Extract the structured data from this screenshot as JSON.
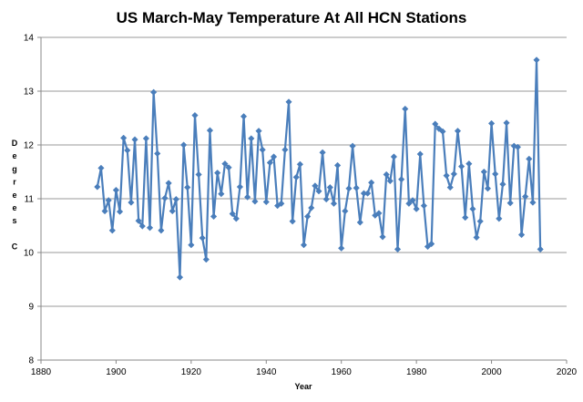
{
  "chart_data": {
    "type": "line",
    "title": "US March-May Temperature At All HCN Stations",
    "xlabel": "Year",
    "ylabel": "Degrees C",
    "xlim": [
      1880,
      2020
    ],
    "ylim": [
      8,
      14
    ],
    "xticks": [
      1880,
      1900,
      1920,
      1940,
      1960,
      1980,
      2000,
      2020
    ],
    "yticks": [
      8,
      9,
      10,
      11,
      12,
      13,
      14
    ],
    "grid": "horizontal",
    "line_color": "#4a7ebb",
    "series": [
      {
        "x": [
          1895,
          1896,
          1897,
          1898,
          1899,
          1900,
          1901,
          1902,
          1903,
          1904,
          1905,
          1906,
          1907,
          1908,
          1909,
          1910,
          1911,
          1912,
          1913,
          1914,
          1915,
          1916,
          1917,
          1918,
          1919,
          1920,
          1921,
          1922,
          1923,
          1924,
          1925,
          1926,
          1927,
          1928,
          1929,
          1930,
          1931,
          1932,
          1933,
          1934,
          1935,
          1936,
          1937,
          1938,
          1939,
          1940,
          1941,
          1942,
          1943,
          1944,
          1945,
          1946,
          1947,
          1948,
          1949,
          1950,
          1951,
          1952,
          1953,
          1954,
          1955,
          1956,
          1957,
          1958,
          1959,
          1960,
          1961,
          1962,
          1963,
          1964,
          1965,
          1966,
          1967,
          1968,
          1969,
          1970,
          1971,
          1972,
          1973,
          1974,
          1975,
          1976,
          1977,
          1978,
          1979,
          1980,
          1981,
          1982,
          1983,
          1984,
          1985,
          1986,
          1987,
          1988,
          1989,
          1990,
          1991,
          1992,
          1993,
          1994,
          1995,
          1996,
          1997,
          1998,
          1999,
          2000,
          2001,
          2002,
          2003,
          2004,
          2005,
          2006,
          2007,
          2008,
          2009,
          2010,
          2011,
          2012,
          2013
        ],
        "values": [
          11.22,
          11.57,
          10.77,
          10.97,
          10.41,
          11.16,
          10.76,
          12.13,
          11.9,
          10.93,
          12.1,
          10.59,
          10.49,
          12.12,
          10.46,
          12.98,
          11.84,
          10.41,
          11.01,
          11.29,
          10.77,
          10.99,
          9.54,
          12.0,
          11.21,
          10.14,
          12.55,
          11.45,
          10.27,
          9.87,
          12.27,
          10.67,
          11.48,
          11.09,
          11.65,
          11.58,
          10.72,
          10.63,
          11.22,
          12.53,
          11.03,
          12.12,
          10.95,
          12.26,
          11.91,
          10.94,
          11.67,
          11.78,
          10.87,
          10.91,
          11.91,
          12.8,
          10.58,
          11.4,
          11.64,
          10.14,
          10.67,
          10.83,
          11.24,
          11.14,
          11.86,
          10.99,
          11.21,
          10.91,
          11.62,
          10.08,
          10.77,
          11.19,
          11.98,
          11.2,
          10.56,
          11.1,
          11.1,
          11.3,
          10.69,
          10.73,
          10.29,
          11.45,
          11.33,
          11.78,
          10.06,
          11.36,
          12.67,
          10.91,
          10.97,
          10.81,
          11.83,
          10.87,
          10.11,
          10.16,
          12.39,
          12.3,
          12.25,
          11.43,
          11.21,
          11.46,
          12.26,
          11.6,
          10.65,
          11.65,
          10.81,
          10.28,
          10.58,
          11.5,
          11.19,
          12.4,
          11.46,
          10.63,
          11.27,
          12.41,
          10.92,
          11.98,
          11.96,
          10.33,
          11.04,
          11.74,
          10.93,
          13.58,
          10.06
        ]
      }
    ]
  }
}
